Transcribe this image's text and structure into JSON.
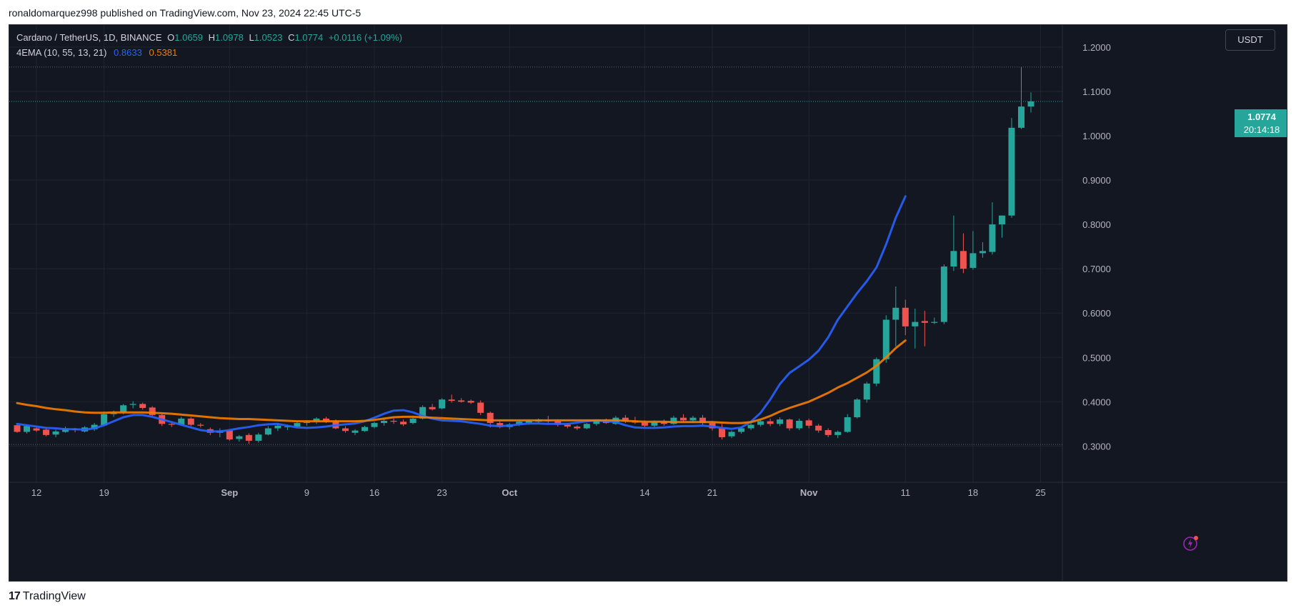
{
  "publisher_line": "ronaldomarquez998 published on TradingView.com, Nov 23, 2024 22:45 UTC-5",
  "legend": {
    "symbol": "Cardano / TetherUS, 1D, BINANCE",
    "o_label": "O",
    "o_value": "1.0659",
    "h_label": "H",
    "h_value": "1.0978",
    "l_label": "L",
    "l_value": "1.0523",
    "c_label": "C",
    "c_value": "1.0774",
    "change": "+0.0116 (+1.09%)",
    "indicator": "4EMA (10, 55, 13, 21)",
    "ema_fast_value": "0.8633",
    "ema_slow_value": "0.5381"
  },
  "currency": "USDT",
  "last_price": {
    "price": "1.0774",
    "countdown": "20:14:18"
  },
  "footer_brand": "TradingView",
  "footer_logo": "17",
  "colors": {
    "up": "#26a69a",
    "down": "#ef5350",
    "ema_fast": "#2962ff",
    "ema_slow": "#f57c00",
    "background": "#131722",
    "grid": "#1f2430",
    "text": "#d1d4dc"
  },
  "chart_data": {
    "type": "candlestick",
    "title": "Cardano / TetherUS, 1D, BINANCE",
    "x_tick_labels": [
      "12",
      "19",
      "Sep",
      "9",
      "16",
      "23",
      "Oct",
      "14",
      "21",
      "Nov",
      "11",
      "18",
      "25"
    ],
    "y_tick_labels": [
      "1.2000",
      "1.1000",
      "1.0000",
      "0.9000",
      "0.8000",
      "0.7000",
      "0.6000",
      "0.5000",
      "0.4000",
      "0.3000"
    ],
    "ylim": [
      0.22,
      1.22
    ],
    "grid": true,
    "dashed_levels": [
      1.155,
      0.3035
    ],
    "series": [
      {
        "name": "EMA (10)",
        "color": "#2962ff",
        "values": [
          0.35,
          0.347,
          0.344,
          0.341,
          0.34,
          0.338,
          0.338,
          0.337,
          0.34,
          0.347,
          0.356,
          0.365,
          0.37,
          0.37,
          0.366,
          0.36,
          0.354,
          0.348,
          0.342,
          0.336,
          0.333,
          0.333,
          0.336,
          0.34,
          0.343,
          0.347,
          0.349,
          0.35,
          0.346,
          0.342,
          0.341,
          0.342,
          0.344,
          0.347,
          0.349,
          0.351,
          0.356,
          0.364,
          0.373,
          0.38,
          0.381,
          0.376,
          0.368,
          0.362,
          0.358,
          0.357,
          0.356,
          0.353,
          0.35,
          0.346,
          0.345,
          0.346,
          0.349,
          0.351,
          0.351,
          0.35,
          0.35,
          0.35,
          0.353,
          0.356,
          0.358,
          0.356,
          0.354,
          0.347,
          0.342,
          0.341,
          0.341,
          0.342,
          0.344,
          0.345,
          0.345,
          0.346,
          0.344,
          0.341,
          0.339,
          0.342,
          0.355,
          0.375,
          0.405,
          0.44,
          0.465,
          0.48,
          0.495,
          0.515,
          0.545,
          0.585,
          0.615,
          0.645,
          0.672,
          0.703,
          0.755,
          0.815,
          0.8633
        ]
      },
      {
        "name": "EMA (55)",
        "color": "#f57c00",
        "values": [
          0.397,
          0.393,
          0.39,
          0.386,
          0.383,
          0.381,
          0.378,
          0.376,
          0.375,
          0.375,
          0.376,
          0.376,
          0.376,
          0.376,
          0.375,
          0.374,
          0.373,
          0.371,
          0.369,
          0.367,
          0.365,
          0.363,
          0.362,
          0.361,
          0.361,
          0.36,
          0.359,
          0.358,
          0.357,
          0.356,
          0.356,
          0.356,
          0.356,
          0.356,
          0.356,
          0.356,
          0.357,
          0.359,
          0.362,
          0.365,
          0.366,
          0.366,
          0.365,
          0.364,
          0.363,
          0.362,
          0.361,
          0.36,
          0.359,
          0.358,
          0.358,
          0.358,
          0.358,
          0.358,
          0.358,
          0.358,
          0.358,
          0.358,
          0.358,
          0.358,
          0.358,
          0.358,
          0.358,
          0.357,
          0.356,
          0.355,
          0.355,
          0.355,
          0.354,
          0.354,
          0.354,
          0.354,
          0.354,
          0.353,
          0.352,
          0.352,
          0.354,
          0.36,
          0.368,
          0.378,
          0.386,
          0.393,
          0.4,
          0.41,
          0.42,
          0.432,
          0.442,
          0.454,
          0.466,
          0.481,
          0.5,
          0.521,
          0.5381
        ]
      }
    ],
    "candles": [
      [
        0.347,
        0.352,
        0.33,
        0.332
      ],
      [
        0.332,
        0.348,
        0.328,
        0.345
      ],
      [
        0.34,
        0.346,
        0.332,
        0.335
      ],
      [
        0.337,
        0.342,
        0.322,
        0.325
      ],
      [
        0.326,
        0.337,
        0.32,
        0.333
      ],
      [
        0.332,
        0.344,
        0.33,
        0.34
      ],
      [
        0.338,
        0.341,
        0.331,
        0.336
      ],
      [
        0.333,
        0.345,
        0.331,
        0.342
      ],
      [
        0.338,
        0.352,
        0.334,
        0.348
      ],
      [
        0.347,
        0.378,
        0.345,
        0.372
      ],
      [
        0.372,
        0.38,
        0.366,
        0.376
      ],
      [
        0.376,
        0.395,
        0.372,
        0.392
      ],
      [
        0.393,
        0.401,
        0.385,
        0.395
      ],
      [
        0.395,
        0.398,
        0.382,
        0.386
      ],
      [
        0.387,
        0.39,
        0.368,
        0.37
      ],
      [
        0.37,
        0.372,
        0.345,
        0.35
      ],
      [
        0.35,
        0.356,
        0.343,
        0.348
      ],
      [
        0.348,
        0.366,
        0.346,
        0.362
      ],
      [
        0.362,
        0.365,
        0.345,
        0.348
      ],
      [
        0.348,
        0.352,
        0.342,
        0.346
      ],
      [
        0.338,
        0.342,
        0.325,
        0.33
      ],
      [
        0.33,
        0.34,
        0.32,
        0.335
      ],
      [
        0.335,
        0.338,
        0.312,
        0.315
      ],
      [
        0.316,
        0.325,
        0.31,
        0.322
      ],
      [
        0.325,
        0.329,
        0.305,
        0.312
      ],
      [
        0.312,
        0.33,
        0.308,
        0.326
      ],
      [
        0.326,
        0.345,
        0.324,
        0.34
      ],
      [
        0.34,
        0.35,
        0.334,
        0.346
      ],
      [
        0.343,
        0.348,
        0.336,
        0.344
      ],
      [
        0.344,
        0.356,
        0.34,
        0.352
      ],
      [
        0.352,
        0.358,
        0.346,
        0.354
      ],
      [
        0.355,
        0.365,
        0.35,
        0.362
      ],
      [
        0.362,
        0.366,
        0.352,
        0.356
      ],
      [
        0.356,
        0.36,
        0.338,
        0.34
      ],
      [
        0.34,
        0.345,
        0.33,
        0.334
      ],
      [
        0.33,
        0.338,
        0.325,
        0.335
      ],
      [
        0.334,
        0.346,
        0.332,
        0.343
      ],
      [
        0.343,
        0.355,
        0.34,
        0.352
      ],
      [
        0.352,
        0.36,
        0.346,
        0.357
      ],
      [
        0.357,
        0.362,
        0.35,
        0.355
      ],
      [
        0.355,
        0.36,
        0.345,
        0.349
      ],
      [
        0.352,
        0.365,
        0.349,
        0.362
      ],
      [
        0.362,
        0.392,
        0.36,
        0.388
      ],
      [
        0.388,
        0.395,
        0.38,
        0.383
      ],
      [
        0.385,
        0.408,
        0.383,
        0.405
      ],
      [
        0.405,
        0.416,
        0.398,
        0.402
      ],
      [
        0.403,
        0.408,
        0.398,
        0.4
      ],
      [
        0.402,
        0.405,
        0.395,
        0.398
      ],
      [
        0.398,
        0.403,
        0.37,
        0.375
      ],
      [
        0.375,
        0.378,
        0.342,
        0.352
      ],
      [
        0.352,
        0.356,
        0.34,
        0.343
      ],
      [
        0.343,
        0.352,
        0.338,
        0.349
      ],
      [
        0.349,
        0.358,
        0.345,
        0.355
      ],
      [
        0.353,
        0.36,
        0.348,
        0.357
      ],
      [
        0.355,
        0.362,
        0.35,
        0.36
      ],
      [
        0.358,
        0.368,
        0.352,
        0.356
      ],
      [
        0.356,
        0.36,
        0.344,
        0.348
      ],
      [
        0.348,
        0.352,
        0.34,
        0.344
      ],
      [
        0.344,
        0.347,
        0.336,
        0.34
      ],
      [
        0.34,
        0.352,
        0.338,
        0.35
      ],
      [
        0.35,
        0.36,
        0.346,
        0.357
      ],
      [
        0.356,
        0.362,
        0.35,
        0.352
      ],
      [
        0.35,
        0.368,
        0.348,
        0.364
      ],
      [
        0.364,
        0.37,
        0.352,
        0.356
      ],
      [
        0.356,
        0.366,
        0.35,
        0.353
      ],
      [
        0.353,
        0.358,
        0.342,
        0.346
      ],
      [
        0.346,
        0.358,
        0.342,
        0.354
      ],
      [
        0.354,
        0.36,
        0.346,
        0.35
      ],
      [
        0.35,
        0.368,
        0.348,
        0.364
      ],
      [
        0.364,
        0.372,
        0.354,
        0.358
      ],
      [
        0.358,
        0.368,
        0.352,
        0.364
      ],
      [
        0.364,
        0.37,
        0.348,
        0.352
      ],
      [
        0.352,
        0.356,
        0.335,
        0.34
      ],
      [
        0.34,
        0.35,
        0.315,
        0.32
      ],
      [
        0.322,
        0.335,
        0.318,
        0.332
      ],
      [
        0.332,
        0.344,
        0.328,
        0.34
      ],
      [
        0.34,
        0.352,
        0.336,
        0.348
      ],
      [
        0.348,
        0.36,
        0.344,
        0.356
      ],
      [
        0.356,
        0.362,
        0.345,
        0.35
      ],
      [
        0.35,
        0.365,
        0.345,
        0.36
      ],
      [
        0.36,
        0.362,
        0.335,
        0.34
      ],
      [
        0.34,
        0.362,
        0.336,
        0.357
      ],
      [
        0.358,
        0.362,
        0.34,
        0.346
      ],
      [
        0.346,
        0.35,
        0.33,
        0.335
      ],
      [
        0.336,
        0.34,
        0.32,
        0.325
      ],
      [
        0.325,
        0.335,
        0.318,
        0.332
      ],
      [
        0.332,
        0.372,
        0.33,
        0.365
      ],
      [
        0.365,
        0.408,
        0.362,
        0.405
      ],
      [
        0.405,
        0.445,
        0.398,
        0.441
      ],
      [
        0.441,
        0.5,
        0.435,
        0.496
      ],
      [
        0.496,
        0.595,
        0.488,
        0.585
      ],
      [
        0.585,
        0.66,
        0.525,
        0.612
      ],
      [
        0.612,
        0.63,
        0.55,
        0.57
      ],
      [
        0.57,
        0.61,
        0.52,
        0.58
      ],
      [
        0.582,
        0.605,
        0.525,
        0.578
      ],
      [
        0.578,
        0.59,
        0.575,
        0.58
      ],
      [
        0.58,
        0.71,
        0.575,
        0.705
      ],
      [
        0.705,
        0.82,
        0.695,
        0.74
      ],
      [
        0.74,
        0.78,
        0.69,
        0.7
      ],
      [
        0.702,
        0.785,
        0.698,
        0.735
      ],
      [
        0.735,
        0.76,
        0.725,
        0.74
      ],
      [
        0.738,
        0.85,
        0.732,
        0.8
      ],
      [
        0.8,
        0.82,
        0.77,
        0.82
      ],
      [
        0.82,
        1.04,
        0.815,
        1.018
      ],
      [
        1.018,
        1.155,
        1.015,
        1.0659
      ],
      [
        1.0659,
        1.0978,
        1.0523,
        1.0774
      ]
    ]
  }
}
